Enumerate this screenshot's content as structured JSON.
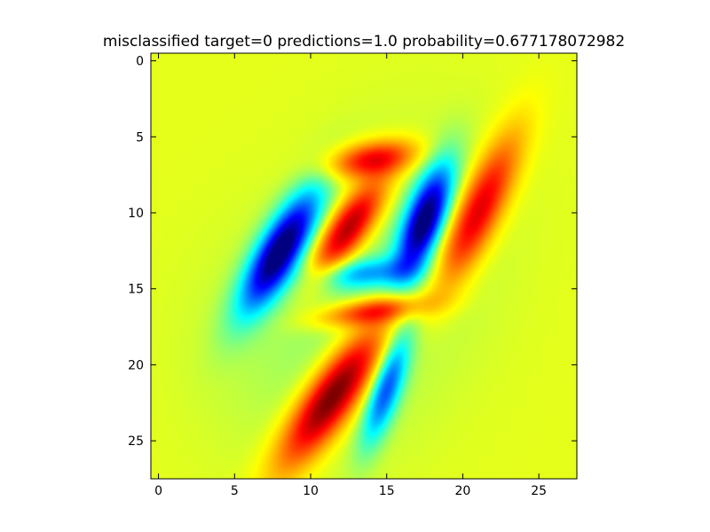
{
  "chart_data": {
    "type": "heatmap",
    "title": "misclassified target=0 predictions=1.0 probability=0.677178072982",
    "xlabel": "",
    "ylabel": "",
    "xlim": [
      -0.5,
      27.5
    ],
    "ylim": [
      27.5,
      -0.5
    ],
    "x_ticks": [
      "0",
      "5",
      "10",
      "15",
      "20",
      "25"
    ],
    "y_ticks": [
      "0",
      "5",
      "10",
      "15",
      "20",
      "25"
    ],
    "grid": false,
    "colormap": "jet",
    "background_color": "#ccff28",
    "blobs": [
      {
        "cx": 8.0,
        "cy": 12.5,
        "sx": 1.0,
        "sy": 3.2,
        "rot": 30,
        "amp": -1.0
      },
      {
        "cx": 12.5,
        "cy": 11.0,
        "sx": 0.9,
        "sy": 2.6,
        "rot": 35,
        "amp": 0.85
      },
      {
        "cx": 14.0,
        "cy": 6.5,
        "sx": 2.0,
        "sy": 0.8,
        "rot": -10,
        "amp": 0.65
      },
      {
        "cx": 17.5,
        "cy": 10.5,
        "sx": 0.9,
        "sy": 2.8,
        "rot": 20,
        "amp": -0.95
      },
      {
        "cx": 21.0,
        "cy": 10.0,
        "sx": 1.0,
        "sy": 3.8,
        "rot": 25,
        "amp": 0.72
      },
      {
        "cx": 13.5,
        "cy": 14.0,
        "sx": 2.3,
        "sy": 0.7,
        "rot": -5,
        "amp": -0.4
      },
      {
        "cx": 11.5,
        "cy": 22.0,
        "sx": 1.1,
        "sy": 3.8,
        "rot": 35,
        "amp": 1.0
      },
      {
        "cx": 14.0,
        "cy": 16.5,
        "sx": 2.5,
        "sy": 0.6,
        "rot": -8,
        "amp": 0.55
      },
      {
        "cx": 15.0,
        "cy": 21.5,
        "sx": 0.7,
        "sy": 2.8,
        "rot": 18,
        "amp": -0.6
      },
      {
        "cx": 10.0,
        "cy": 19.0,
        "sx": 5.0,
        "sy": 5.5,
        "rot": 0,
        "amp": -0.1
      },
      {
        "cx": 16.5,
        "cy": 12.0,
        "sx": 4.5,
        "sy": 6.0,
        "rot": 10,
        "amp": -0.08
      }
    ]
  }
}
